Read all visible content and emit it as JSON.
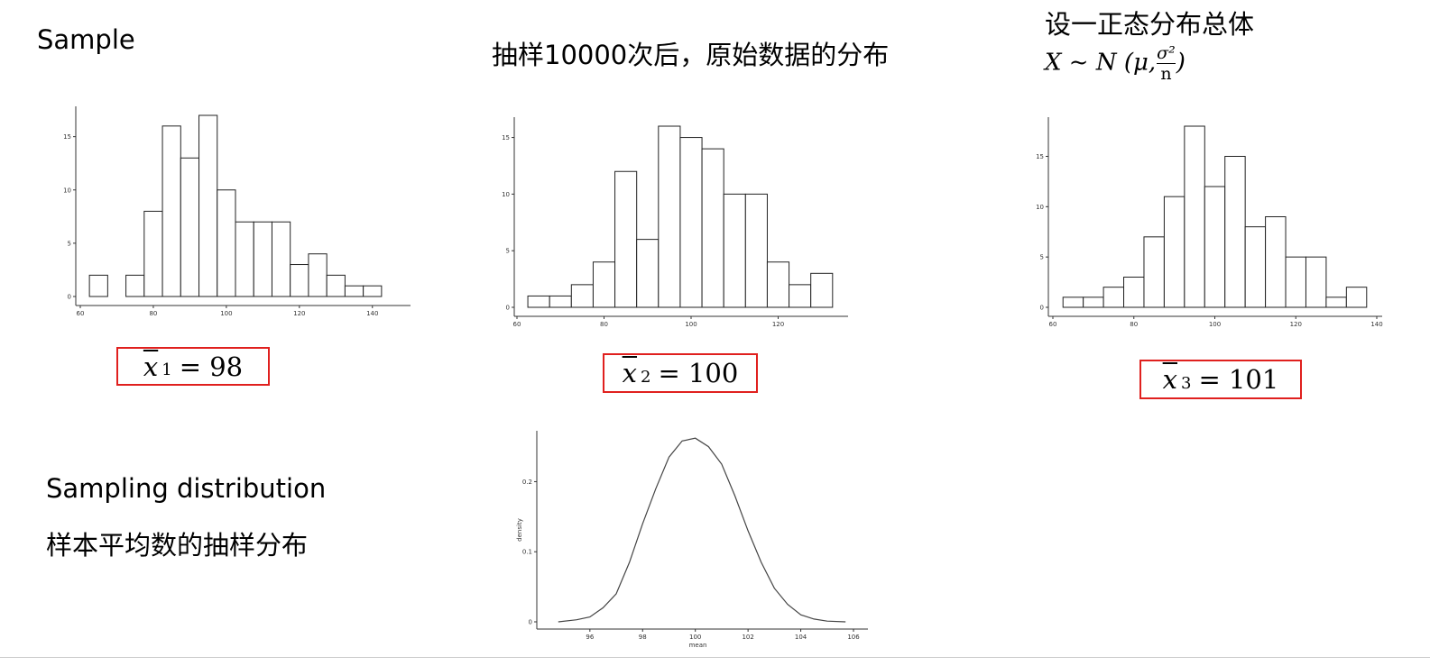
{
  "labels": {
    "sample": "Sample",
    "raw_title": "抽样10000次后，原始数据的分布",
    "pop_title": "设一正态分布总体",
    "pop_formula_prefix": "X ~ N (μ,",
    "pop_formula_num": "σ²",
    "pop_formula_den": "n",
    "pop_formula_suffix": ")",
    "sampling_distribution": "Sampling distribution",
    "sampling_distribution_cn": "样本平均数的抽样分布"
  },
  "means": [
    {
      "symbol": "x",
      "sub": "1",
      "rest": "= 98"
    },
    {
      "symbol": "x",
      "sub": "2",
      "rest": "= 100"
    },
    {
      "symbol": "x",
      "sub": "3",
      "rest": "= 101"
    }
  ],
  "colors": {
    "highlight_box": "#e0201e",
    "bar_stroke": "#222222",
    "axis": "#333333"
  },
  "chart_data": [
    {
      "type": "bar",
      "name": "sample-1-histogram",
      "bin_start": 62.5,
      "bin_width": 5,
      "values": [
        2,
        0,
        2,
        8,
        16,
        13,
        17,
        10,
        7,
        7,
        7,
        3,
        4,
        2,
        1,
        1
      ],
      "xlim": [
        60,
        145
      ],
      "ylim": [
        0,
        17
      ],
      "xticks": [
        60,
        80,
        100,
        120,
        140
      ],
      "yticks": [
        0,
        5,
        10,
        15
      ]
    },
    {
      "type": "bar",
      "name": "sample-2-histogram",
      "bin_start": 62.5,
      "bin_width": 5,
      "values": [
        1,
        1,
        2,
        4,
        12,
        6,
        16,
        15,
        14,
        10,
        10,
        4,
        2,
        3
      ],
      "xlim": [
        60,
        140
      ],
      "ylim": [
        0,
        16
      ],
      "xticks": [
        60,
        80,
        100,
        120
      ],
      "yticks": [
        0,
        5,
        10,
        15
      ]
    },
    {
      "type": "bar",
      "name": "sample-3-histogram",
      "bin_start": 62.5,
      "bin_width": 5,
      "values": [
        1,
        1,
        2,
        3,
        7,
        11,
        18,
        12,
        15,
        8,
        9,
        5,
        5,
        1,
        2
      ],
      "xlim": [
        60,
        140
      ],
      "ylim": [
        0,
        18
      ],
      "xticks": [
        60,
        80,
        100,
        120,
        140
      ],
      "yticks": [
        0,
        5,
        10,
        15
      ]
    },
    {
      "type": "line",
      "name": "sampling-distribution-density",
      "x": [
        94.8,
        95.5,
        96.0,
        96.5,
        97.0,
        97.5,
        98.0,
        98.5,
        99.0,
        99.5,
        100.0,
        100.5,
        101.0,
        101.5,
        102.0,
        102.5,
        103.0,
        103.5,
        104.0,
        104.5,
        105.0,
        105.7
      ],
      "y": [
        0.0,
        0.003,
        0.007,
        0.02,
        0.04,
        0.085,
        0.14,
        0.19,
        0.235,
        0.258,
        0.262,
        0.25,
        0.225,
        0.18,
        0.13,
        0.085,
        0.048,
        0.025,
        0.01,
        0.004,
        0.001,
        0.0
      ],
      "xlabel": "mean",
      "ylabel": "density",
      "xlim": [
        94.5,
        106
      ],
      "ylim": [
        0,
        0.27
      ],
      "xticks": [
        96,
        98,
        100,
        102,
        104,
        106
      ],
      "yticks": [
        0.0,
        0.1,
        0.2
      ]
    }
  ]
}
